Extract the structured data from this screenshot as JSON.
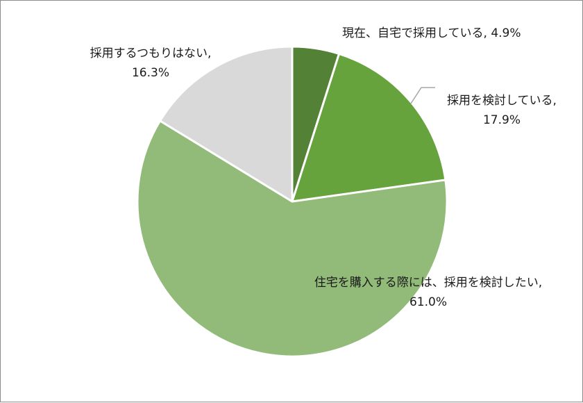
{
  "chart_data": {
    "type": "pie",
    "slices": [
      {
        "label": "現在、自宅で採用している",
        "value": 4.9,
        "value_label": "4.9%",
        "color": "#538135"
      },
      {
        "label": "採用を検討している",
        "value": 17.9,
        "value_label": "17.9%",
        "color": "#66a33c"
      },
      {
        "label": "住宅を購入する際には、採用を検討したい",
        "value": 61.0,
        "value_label": "61.0%",
        "color": "#92bb79"
      },
      {
        "label": "採用するつもりはない",
        "value": 16.3,
        "value_label": "16.3%",
        "color": "#d9d9d9"
      }
    ],
    "separator": ",",
    "start_angle_deg": 0,
    "direction": "clockwise",
    "legend": "none",
    "leader_line_color": "#a6a6a6"
  }
}
